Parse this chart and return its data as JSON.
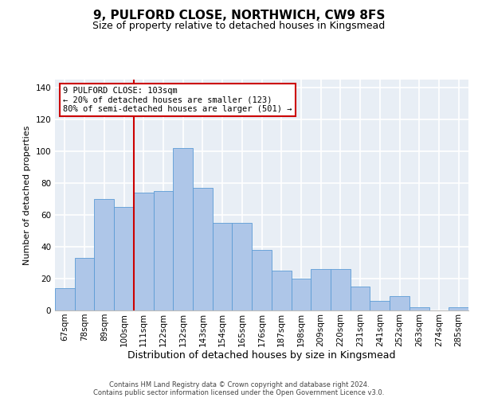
{
  "title": "9, PULFORD CLOSE, NORTHWICH, CW9 8FS",
  "subtitle": "Size of property relative to detached houses in Kingsmead",
  "xlabel": "Distribution of detached houses by size in Kingsmead",
  "ylabel": "Number of detached properties",
  "bar_labels": [
    "67sqm",
    "78sqm",
    "89sqm",
    "100sqm",
    "111sqm",
    "122sqm",
    "132sqm",
    "143sqm",
    "154sqm",
    "165sqm",
    "176sqm",
    "187sqm",
    "198sqm",
    "209sqm",
    "220sqm",
    "231sqm",
    "241sqm",
    "252sqm",
    "263sqm",
    "274sqm",
    "285sqm"
  ],
  "bar_values": [
    14,
    33,
    70,
    65,
    74,
    75,
    102,
    77,
    55,
    55,
    38,
    25,
    20,
    26,
    26,
    15,
    6,
    9,
    2,
    0,
    2
  ],
  "bar_color": "#aec6e8",
  "bar_edge_color": "#5b9bd5",
  "vline_x_index": 3.5,
  "vline_color": "#cc0000",
  "ylim": [
    0,
    145
  ],
  "yticks": [
    0,
    20,
    40,
    60,
    80,
    100,
    120,
    140
  ],
  "annotation_text": "9 PULFORD CLOSE: 103sqm\n← 20% of detached houses are smaller (123)\n80% of semi-detached houses are larger (501) →",
  "annotation_box_color": "#ffffff",
  "annotation_box_edge": "#cc0000",
  "footer_line1": "Contains HM Land Registry data © Crown copyright and database right 2024.",
  "footer_line2": "Contains public sector information licensed under the Open Government Licence v3.0.",
  "background_color": "#e8eef5",
  "grid_color": "#ffffff",
  "title_fontsize": 11,
  "subtitle_fontsize": 9,
  "xlabel_fontsize": 9,
  "ylabel_fontsize": 8,
  "tick_fontsize": 7.5,
  "footer_fontsize": 6,
  "annot_fontsize": 7.5
}
